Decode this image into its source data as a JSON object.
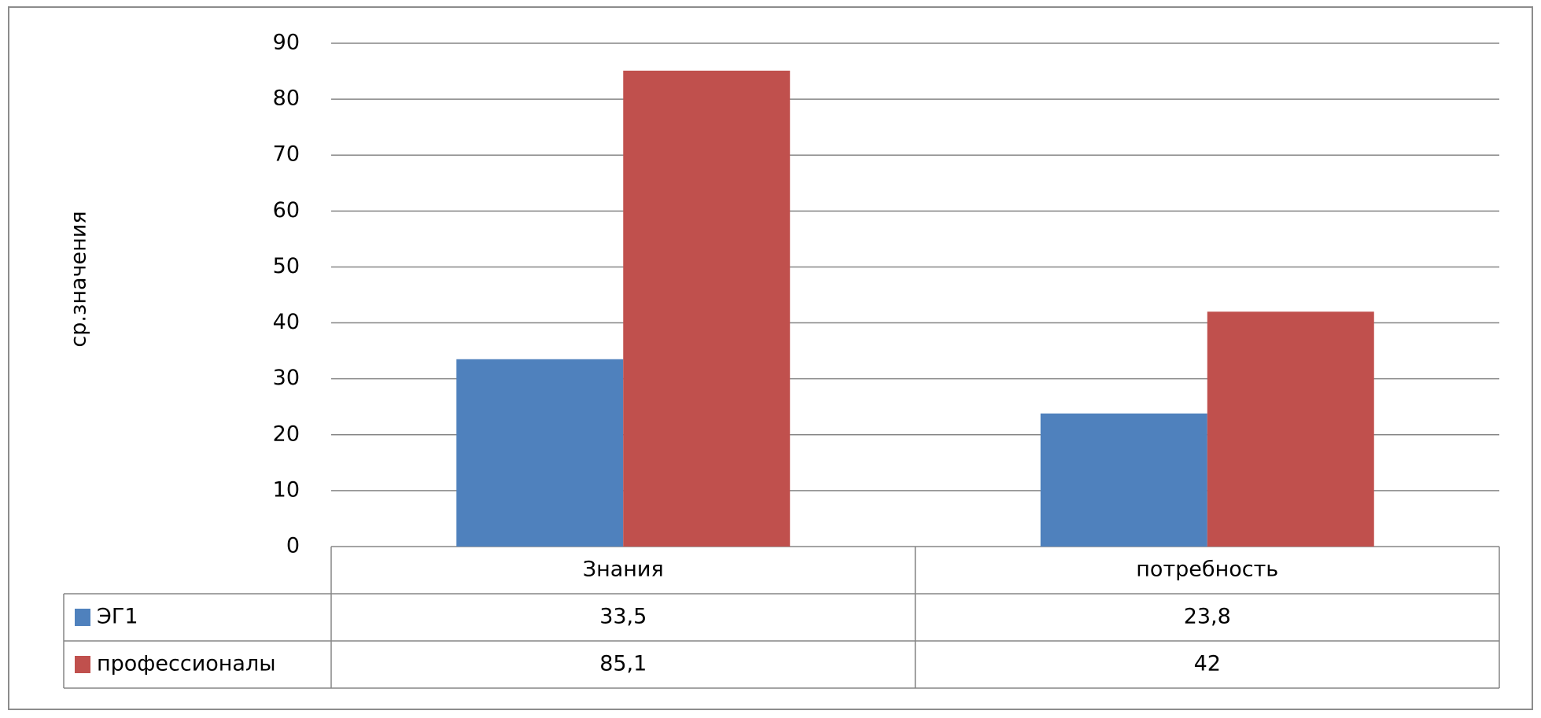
{
  "chart_data": {
    "type": "bar",
    "title": "",
    "xlabel": "",
    "ylabel": "ср.значения",
    "ylim": [
      0,
      90
    ],
    "yticks": [
      0,
      10,
      20,
      30,
      40,
      50,
      60,
      70,
      80,
      90
    ],
    "grid": true,
    "legend_placement": "data-table",
    "categories": [
      "Знания",
      "потребность"
    ],
    "series": [
      {
        "name": "ЭГ1",
        "color": "#4f81bd",
        "values": [
          33.5,
          23.8
        ],
        "labels": [
          "33,5",
          "23,8"
        ]
      },
      {
        "name": "профессионалы",
        "color": "#c0504d",
        "values": [
          85.1,
          42
        ],
        "labels": [
          "85,1",
          "42"
        ]
      }
    ]
  }
}
